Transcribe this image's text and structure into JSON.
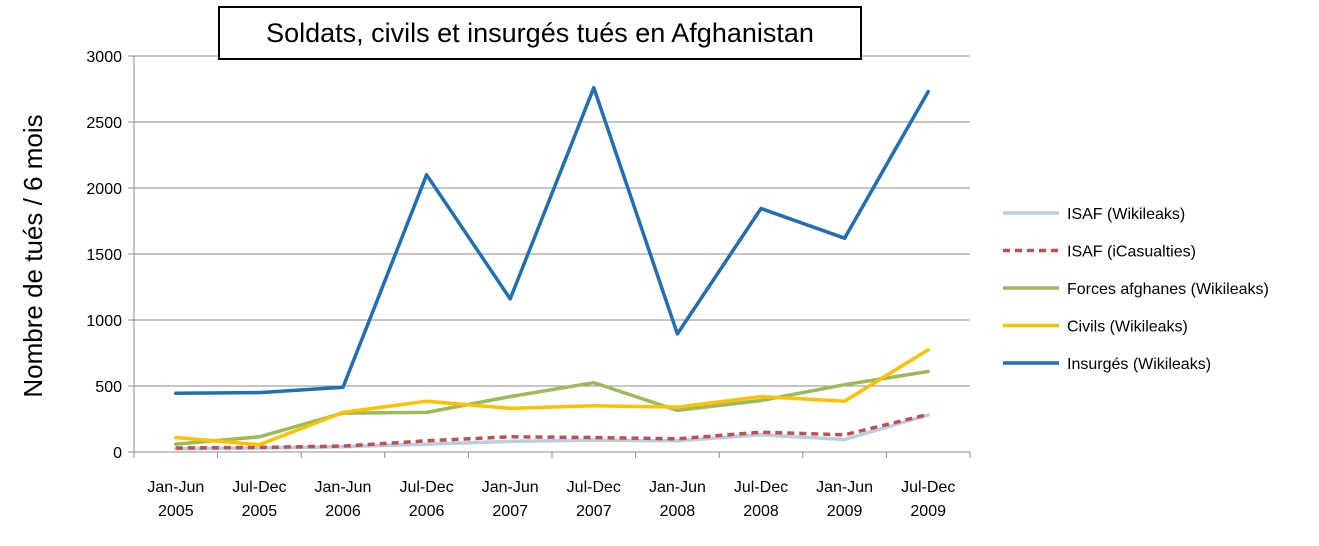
{
  "chart_data": {
    "type": "line",
    "title": "Soldats, civils et insurgés tués en Afghanistan",
    "ylabel": "Nombre de tués / 6 mois",
    "xlabel": "",
    "ylim": [
      0,
      3000
    ],
    "yticks": [
      "0",
      "500",
      "1000",
      "1500",
      "2000",
      "2500",
      "3000"
    ],
    "categories": [
      [
        "Jan-Jun",
        "2005"
      ],
      [
        "Jul-Dec",
        "2005"
      ],
      [
        "Jan-Jun",
        "2006"
      ],
      [
        "Jul-Dec",
        "2006"
      ],
      [
        "Jan-Jun",
        "2007"
      ],
      [
        "Jul-Dec",
        "2007"
      ],
      [
        "Jan-Jun",
        "2008"
      ],
      [
        "Jul-Dec",
        "2008"
      ],
      [
        "Jan-Jun",
        "2009"
      ],
      [
        "Jul-Dec",
        "2009"
      ]
    ],
    "grid": true,
    "legend_position": "right",
    "series": [
      {
        "name": "ISAF (Wikileaks)",
        "color": "#b9cde5",
        "dashed": false,
        "values": [
          25,
          30,
          40,
          60,
          80,
          90,
          85,
          130,
          95,
          280
        ]
      },
      {
        "name": "ISAF (iCasualties)",
        "color": "#c0504d",
        "dashed": true,
        "values": [
          30,
          35,
          45,
          85,
          115,
          110,
          100,
          150,
          130,
          285
        ]
      },
      {
        "name": "Forces afghanes (Wikileaks)",
        "color": "#9bbb59",
        "dashed": false,
        "values": [
          60,
          115,
          295,
          300,
          420,
          525,
          315,
          390,
          510,
          610
        ]
      },
      {
        "name": "Civils (Wikileaks)",
        "color": "#ffc000",
        "dashed": false,
        "values": [
          110,
          55,
          300,
          385,
          330,
          350,
          340,
          420,
          385,
          775
        ]
      },
      {
        "name": "Insurgés (Wikileaks)",
        "color": "#1f6fb4",
        "dashed": false,
        "values": [
          445,
          450,
          490,
          2100,
          1160,
          2760,
          895,
          1845,
          1620,
          2730
        ]
      }
    ]
  }
}
